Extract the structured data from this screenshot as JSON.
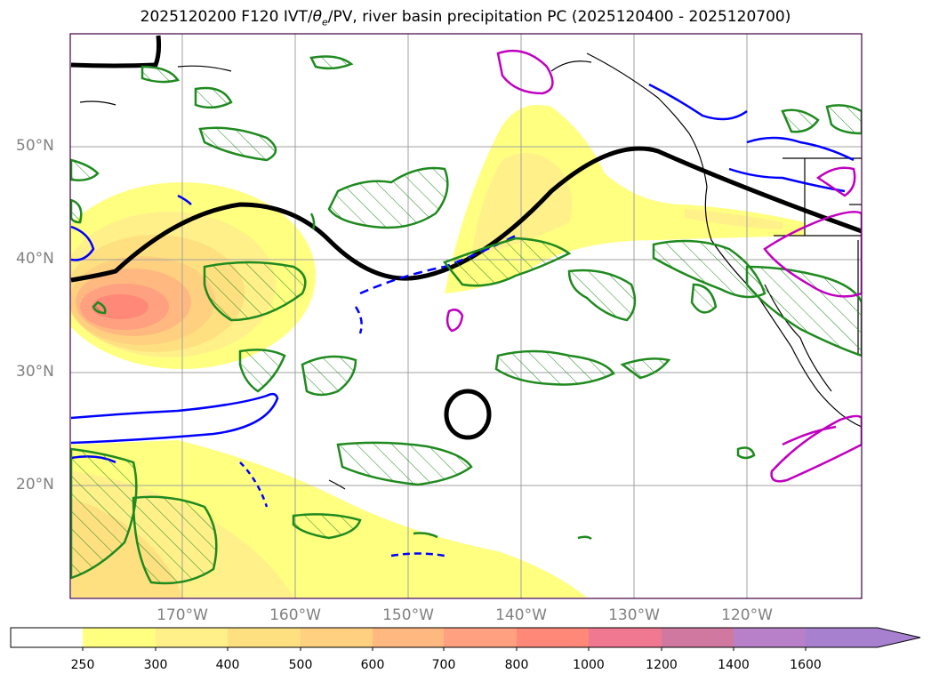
{
  "title": {
    "prefix": "2025120200 F120 IVT/",
    "theta": "θ",
    "subscript": "e",
    "suffix": "/PV, river basin precipitation PC (2025120400 - 2025120700)"
  },
  "colors": {
    "contour_pv": "#000000",
    "contour_precip_pos": "#1f8a1f",
    "contour_theta_neg": "#0000ff",
    "contour_extra": "#c000c0",
    "coastline": "#000000",
    "grid": "#a0a0a0"
  },
  "map": {
    "lat_labels": [
      "50°N",
      "40°N",
      "30°N",
      "20°N"
    ],
    "lon_labels": [
      "170°W",
      "160°W",
      "150°W",
      "140°W",
      "130°W",
      "120°W"
    ]
  },
  "colorbar": {
    "ticks": [
      "250",
      "300",
      "400",
      "500",
      "600",
      "700",
      "800",
      "1000",
      "1200",
      "1400",
      "1600"
    ],
    "colors": [
      "#ffffff",
      "#ffff80",
      "#fff08a",
      "#ffe080",
      "#ffd080",
      "#ffb880",
      "#ffa080",
      "#ff8878",
      "#f07890",
      "#d078a0",
      "#b880c8",
      "#a880d0"
    ],
    "extend": "max"
  }
}
